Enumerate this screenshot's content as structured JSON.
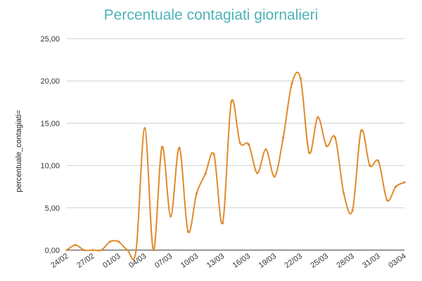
{
  "chart_data": {
    "type": "line",
    "title": "Percentuale contagiati giornalieri",
    "xlabel": "",
    "ylabel": "percentuale_contagiati=",
    "ylim": [
      0,
      25
    ],
    "y_ticks": [
      "0,00",
      "5,00",
      "10,00",
      "15,00",
      "20,00",
      "25,00"
    ],
    "x_tick_labels": [
      "24/02",
      "27/02",
      "01/03",
      "04/03",
      "07/03",
      "10/03",
      "13/03",
      "16/03",
      "19/03",
      "22/03",
      "25/03",
      "28/03",
      "31/03",
      "03/04"
    ],
    "x": [
      "24/02",
      "25/02",
      "26/02",
      "27/02",
      "28/02",
      "29/02",
      "01/03",
      "02/03",
      "03/03",
      "04/03",
      "05/03",
      "06/03",
      "07/03",
      "08/03",
      "09/03",
      "10/03",
      "11/03",
      "12/03",
      "13/03",
      "14/03",
      "15/03",
      "16/03",
      "17/03",
      "18/03",
      "19/03",
      "20/03",
      "21/03",
      "22/03",
      "23/03",
      "24/03",
      "25/03",
      "26/03",
      "27/03",
      "28/03",
      "29/03",
      "30/03",
      "31/03",
      "01/04",
      "02/04",
      "03/04"
    ],
    "series": [
      {
        "name": "",
        "color": "#e08a2c",
        "values": [
          0.0,
          0.6,
          0.0,
          0.0,
          0.0,
          1.0,
          1.0,
          0.0,
          0.0,
          14.4,
          0.0,
          12.2,
          4.0,
          12.1,
          2.2,
          6.7,
          9.0,
          11.3,
          3.2,
          17.5,
          12.7,
          12.5,
          9.1,
          11.9,
          8.7,
          13.3,
          19.7,
          20.3,
          11.5,
          15.7,
          12.3,
          13.3,
          6.7,
          4.7,
          14.1,
          10.0,
          10.5,
          5.9,
          7.5,
          8.0
        ]
      }
    ],
    "grid": true,
    "legend": "none"
  }
}
